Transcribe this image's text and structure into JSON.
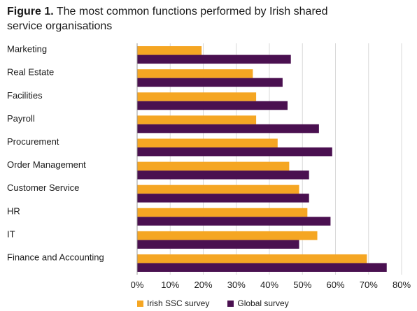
{
  "figure": {
    "label": "Figure 1.",
    "title_line1": "The most common functions performed by Irish shared",
    "title_line2": "service organisations"
  },
  "colors": {
    "irish": "#f5a623",
    "global": "#4a1050",
    "grid": "#d9d9d9",
    "text": "#1a1a1a"
  },
  "chart_data": {
    "type": "bar",
    "orientation": "horizontal",
    "categories": [
      "Marketing",
      "Real Estate",
      "Facilities",
      "Payroll",
      "Procurement",
      "Order Management",
      "Customer Service",
      "HR",
      "IT",
      "Finance and Accounting"
    ],
    "series": [
      {
        "name": "Irish SSC survey",
        "values": [
          19.5,
          35,
          36,
          36,
          42.5,
          46,
          49,
          51.5,
          54.5,
          69.5
        ]
      },
      {
        "name": "Global survey",
        "values": [
          46.5,
          44,
          45.5,
          55,
          59,
          52,
          52,
          58.5,
          49,
          75.5
        ]
      }
    ],
    "xlim": [
      0,
      80
    ],
    "xticks": [
      "0%",
      "10%",
      "20%",
      "30%",
      "40%",
      "50%",
      "60%",
      "70%",
      "80%"
    ],
    "grid": true,
    "legend_position": "bottom"
  }
}
